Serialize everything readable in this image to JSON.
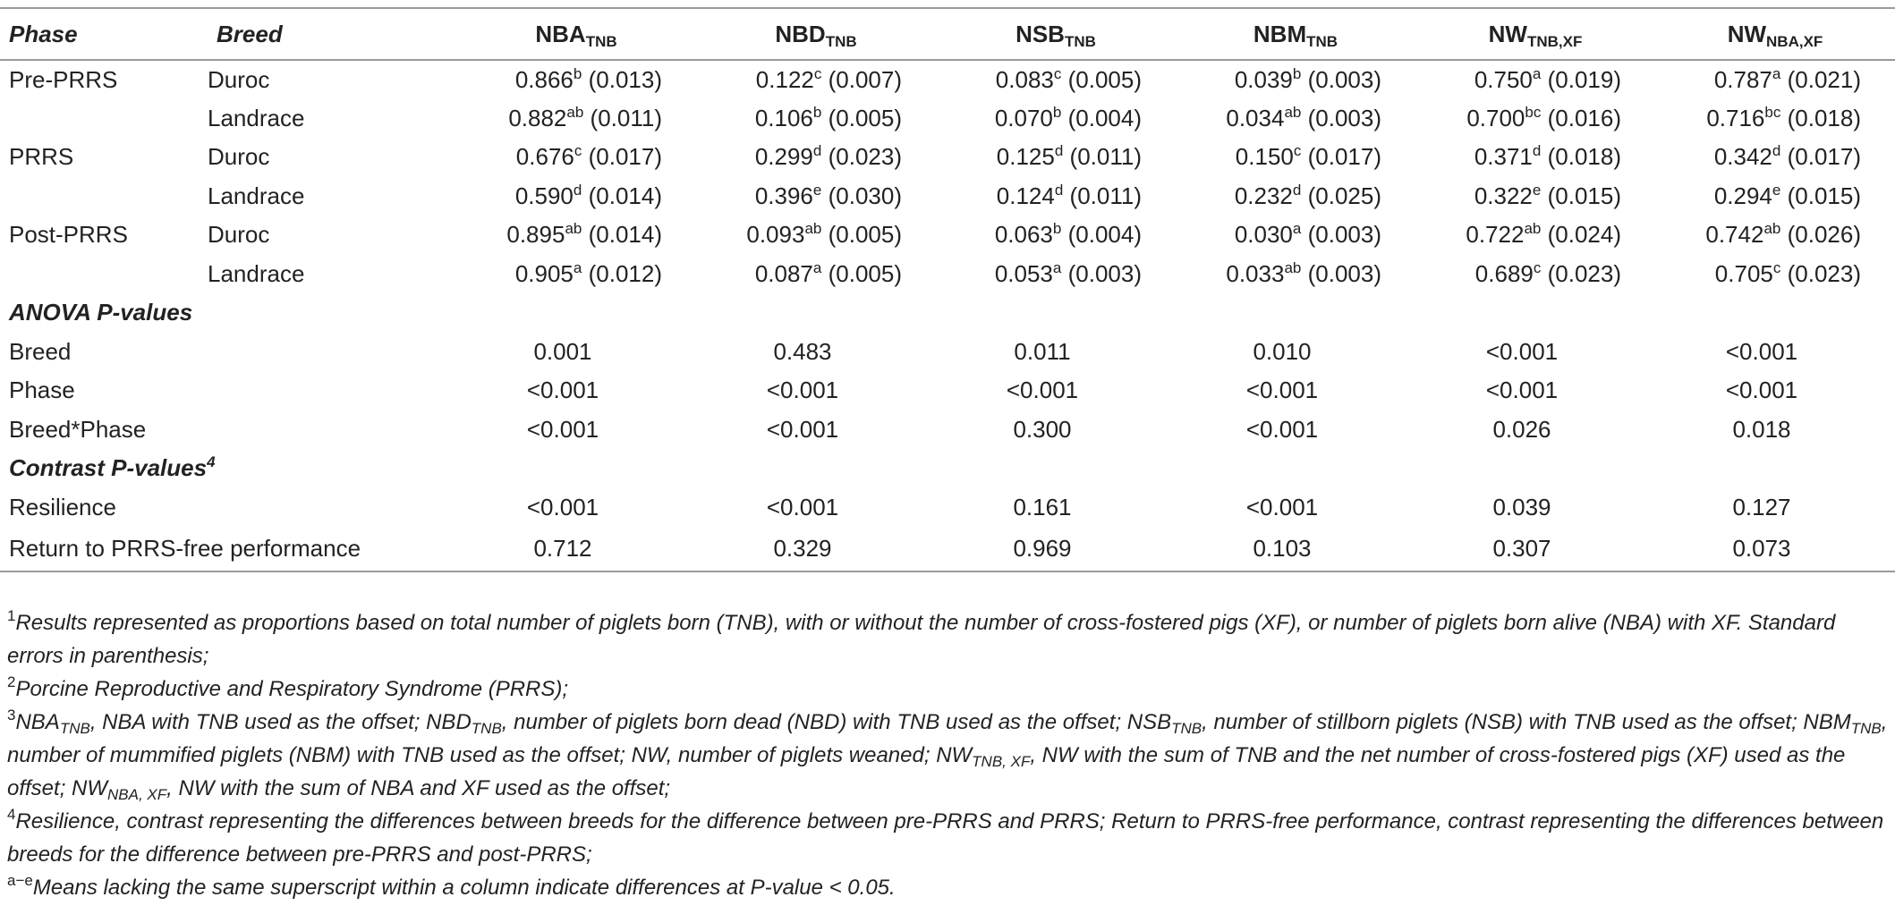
{
  "table": {
    "header_phase": "Phase",
    "header_breed": "Breed",
    "columns": [
      {
        "main": "NBA",
        "sub": "TNB"
      },
      {
        "main": "NBD",
        "sub": "TNB"
      },
      {
        "main": "NSB",
        "sub": "TNB"
      },
      {
        "main": "NBM",
        "sub": "TNB"
      },
      {
        "main": "NW",
        "sub": "TNB,XF"
      },
      {
        "main": "NW",
        "sub": "NBA,XF"
      }
    ],
    "rows": [
      {
        "phase": "Pre-PRRS",
        "breed": "Duroc",
        "cells": [
          [
            "0.866",
            "b",
            "(0.013)"
          ],
          [
            "0.122",
            "c",
            "(0.007)"
          ],
          [
            "0.083",
            "c",
            "(0.005)"
          ],
          [
            "0.039",
            "b",
            "(0.003)"
          ],
          [
            "0.750",
            "a",
            "(0.019)"
          ],
          [
            "0.787",
            "a",
            "(0.021)"
          ]
        ]
      },
      {
        "breed": "Landrace",
        "cells": [
          [
            "0.882",
            "ab",
            "(0.011)"
          ],
          [
            "0.106",
            "b",
            "(0.005)"
          ],
          [
            "0.070",
            "b",
            "(0.004)"
          ],
          [
            "0.034",
            "ab",
            "(0.003)"
          ],
          [
            "0.700",
            "bc",
            "(0.016)"
          ],
          [
            "0.716",
            "bc",
            "(0.018)"
          ]
        ]
      },
      {
        "phase": "PRRS",
        "breed": "Duroc",
        "cells": [
          [
            "0.676",
            "c",
            "(0.017)"
          ],
          [
            "0.299",
            "d",
            "(0.023)"
          ],
          [
            "0.125",
            "d",
            "(0.011)"
          ],
          [
            "0.150",
            "c",
            "(0.017)"
          ],
          [
            "0.371",
            "d",
            "(0.018)"
          ],
          [
            "0.342",
            "d",
            "(0.017)"
          ]
        ]
      },
      {
        "breed": "Landrace",
        "cells": [
          [
            "0.590",
            "d",
            "(0.014)"
          ],
          [
            "0.396",
            "e",
            "(0.030)"
          ],
          [
            "0.124",
            "d",
            "(0.011)"
          ],
          [
            "0.232",
            "d",
            "(0.025)"
          ],
          [
            "0.322",
            "e",
            "(0.015)"
          ],
          [
            "0.294",
            "e",
            "(0.015)"
          ]
        ]
      },
      {
        "phase": "Post-PRRS",
        "breed": "Duroc",
        "cells": [
          [
            "0.895",
            "ab",
            "(0.014)"
          ],
          [
            "0.093",
            "ab",
            "(0.005)"
          ],
          [
            "0.063",
            "b",
            "(0.004)"
          ],
          [
            "0.030",
            "a",
            "(0.003)"
          ],
          [
            "0.722",
            "ab",
            "(0.024)"
          ],
          [
            "0.742",
            "ab",
            "(0.026)"
          ]
        ]
      },
      {
        "breed": "Landrace",
        "cells": [
          [
            "0.905",
            "a",
            "(0.012)"
          ],
          [
            "0.087",
            "a",
            "(0.005)"
          ],
          [
            "0.053",
            "a",
            "(0.003)"
          ],
          [
            "0.033",
            "ab",
            "(0.003)"
          ],
          [
            "0.689",
            "c",
            "(0.023)"
          ],
          [
            "0.705",
            "c",
            "(0.023)"
          ]
        ]
      }
    ],
    "sections": [
      {
        "title": "ANOVA P-values",
        "rows": [
          {
            "label": "Breed",
            "values": [
              "0.001",
              "0.483",
              "0.011",
              "0.010",
              "<0.001",
              "<0.001"
            ]
          },
          {
            "label": "Phase",
            "values": [
              "<0.001",
              "<0.001",
              "<0.001",
              "<0.001",
              "<0.001",
              "<0.001"
            ]
          },
          {
            "label": "Breed*Phase",
            "values": [
              "<0.001",
              "<0.001",
              "0.300",
              "<0.001",
              "0.026",
              "0.018"
            ]
          }
        ]
      },
      {
        "title": "Contrast P-values",
        "sup": "4",
        "rows": [
          {
            "label": "Resilience",
            "values": [
              "<0.001",
              "<0.001",
              "0.161",
              "<0.001",
              "0.039",
              "0.127"
            ]
          },
          {
            "label": "Return to PRRS-free performance",
            "values": [
              "0.712",
              "0.329",
              "0.969",
              "0.103",
              "0.307",
              "0.073"
            ]
          }
        ]
      }
    ]
  },
  "footnotes": [
    [
      {
        "text": "1",
        "style": "sup"
      },
      {
        "text": "Results represented as proportions based on total number of piglets born (TNB), with or without the number of cross-fostered pigs (XF), or number of piglets born alive (NBA) with XF. Standard errors in parenthesis;"
      }
    ],
    [
      {
        "text": "2",
        "style": "sup"
      },
      {
        "text": "Porcine Reproductive and Respiratory Syndrome (PRRS);"
      }
    ],
    [
      {
        "text": "3",
        "style": "sup"
      },
      {
        "text": "NBA"
      },
      {
        "text": "TNB",
        "style": "sub"
      },
      {
        "text": ", NBA with TNB used as the offset; NBD"
      },
      {
        "text": "TNB",
        "style": "sub"
      },
      {
        "text": ", number of piglets born dead (NBD) with TNB used as the offset; NSB"
      },
      {
        "text": "TNB",
        "style": "sub"
      },
      {
        "text": ", number of stillborn piglets (NSB) with TNB used as the offset; NBM"
      },
      {
        "text": "TNB",
        "style": "sub"
      },
      {
        "text": ", number of mummified piglets (NBM) with TNB used as the offset; NW, number of piglets weaned; NW"
      },
      {
        "text": "TNB, XF",
        "style": "sub"
      },
      {
        "text": ", NW with the sum of TNB and the net number of cross-fostered pigs (XF) used as the offset; NW"
      },
      {
        "text": "NBA, XF",
        "style": "sub"
      },
      {
        "text": ", NW with the sum of NBA and XF used as the offset;"
      }
    ],
    [
      {
        "text": "4",
        "style": "sup"
      },
      {
        "text": "Resilience, contrast representing the differences between breeds for the difference between pre-PRRS and PRRS; Return to PRRS-free performance, contrast representing the differences between breeds for the difference between pre-PRRS and post-PRRS;"
      }
    ],
    [
      {
        "text": "a−e",
        "style": "sup"
      },
      {
        "text": "Means lacking the same superscript within a column indicate differences at P-value < 0.05."
      }
    ]
  ]
}
